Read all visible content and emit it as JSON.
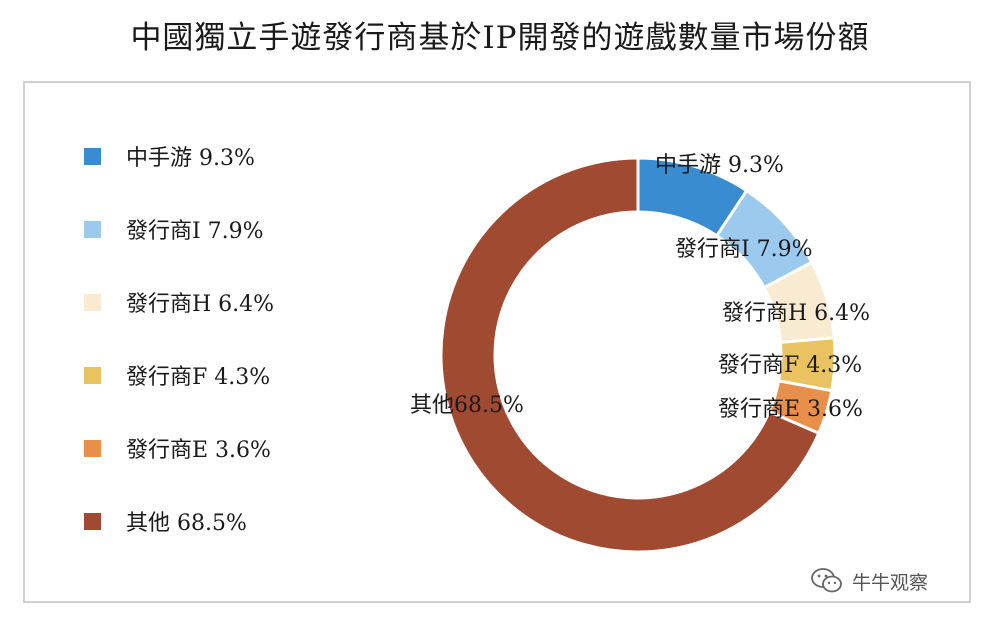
{
  "title": "中國獨立手遊發行商基於IP開發的遊戲數量市場份額",
  "watermark": {
    "text": "牛牛观察",
    "icon": "wechat-icon"
  },
  "chart_data": {
    "type": "pie",
    "title": "中國獨立手遊發行商基於IP開發的遊戲數量市場份額",
    "legend_position": "left",
    "slices": [
      {
        "name": "中手游",
        "value": 9.3,
        "color": "#3a8cd0",
        "legend_label": "中手游 9.3%",
        "data_label": "中手游 9.3%"
      },
      {
        "name": "發行商I",
        "value": 7.9,
        "color": "#9cc9ee",
        "legend_label": "發行商I 7.9%",
        "data_label": "發行商I 7.9%"
      },
      {
        "name": "發行商H",
        "value": 6.4,
        "color": "#f8ebd2",
        "legend_label": "發行商H 6.4%",
        "data_label": "發行商H 6.4%"
      },
      {
        "name": "發行商F",
        "value": 4.3,
        "color": "#e9c262",
        "legend_label": "發行商F 4.3%",
        "data_label": "發行商F 4.3%"
      },
      {
        "name": "發行商E",
        "value": 3.6,
        "color": "#e88f4c",
        "legend_label": "發行商E 3.6%",
        "data_label": "發行商E 3.6%"
      },
      {
        "name": "其他",
        "value": 68.5,
        "color": "#a04a31",
        "legend_label": "其他 68.5%",
        "data_label": "其他68.5%"
      }
    ]
  }
}
